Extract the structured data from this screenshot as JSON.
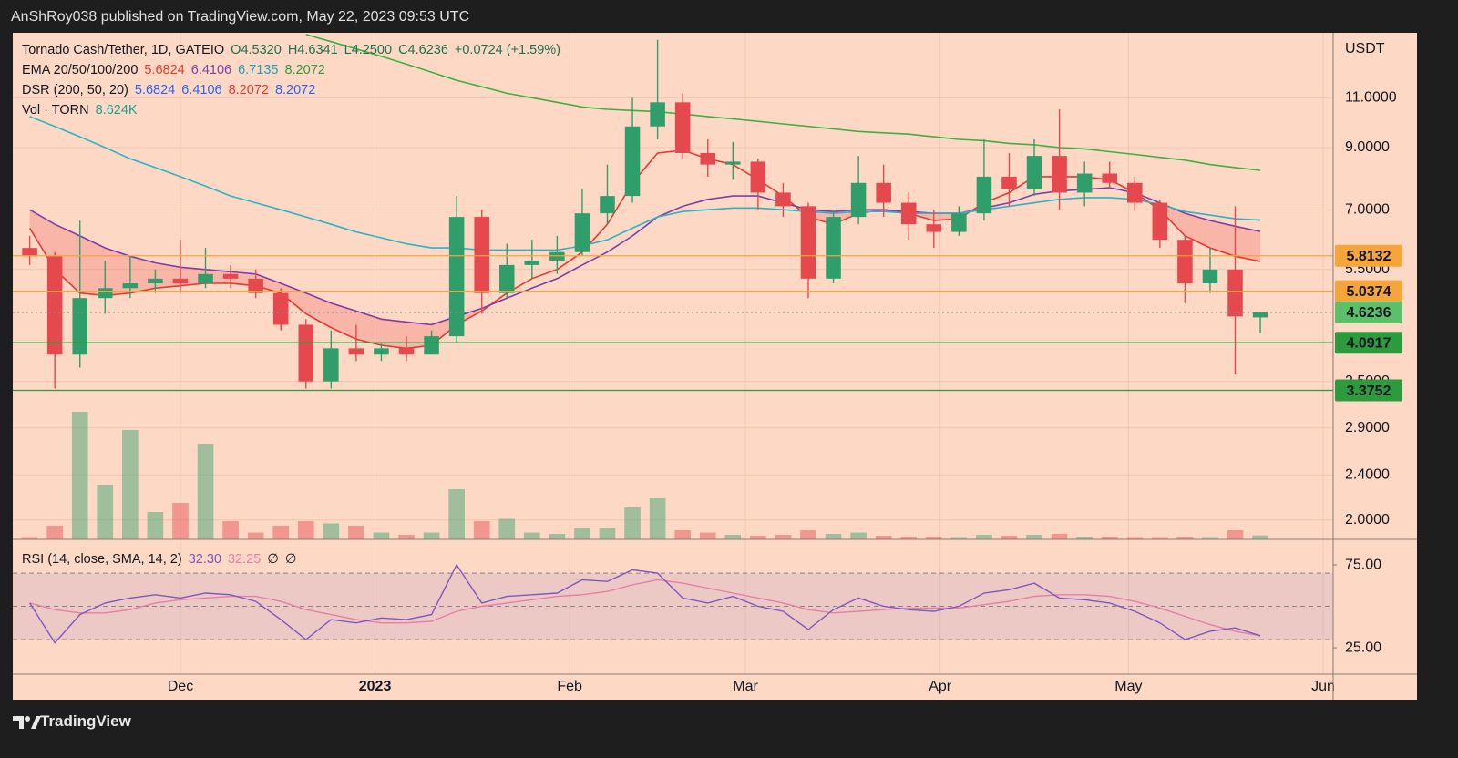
{
  "header": {
    "text": "AnShRoy038 published on TradingView.com, May 22, 2023 09:53 UTC"
  },
  "footer": {
    "brand": "TradingView"
  },
  "chart_data": {
    "type": "candlestick",
    "title": "Tornado Cash/Tether, 1D, GATEIO",
    "currency": "USDT",
    "log_scale": true,
    "grid": true,
    "up_color": "#2f9e6a",
    "down_color": "#e5484d",
    "x": [
      -24,
      -20,
      -16,
      -12,
      -8,
      -4,
      0,
      4,
      8,
      12,
      16,
      20,
      24,
      28,
      32,
      36,
      40,
      44,
      48,
      52,
      56,
      60,
      64,
      68,
      72,
      76,
      80,
      84,
      88,
      92,
      96,
      100,
      104,
      108,
      112,
      116,
      120,
      124,
      128,
      132,
      136,
      140,
      144,
      148,
      152,
      156,
      160,
      164,
      168,
      172
    ],
    "open": [
      6.0,
      5.8,
      3.9,
      4.9,
      5.1,
      5.2,
      5.3,
      5.2,
      5.4,
      5.3,
      5.0,
      4.4,
      3.5,
      4.0,
      3.9,
      4.0,
      3.9,
      4.2,
      6.8,
      5.0,
      5.6,
      5.7,
      5.9,
      6.9,
      7.4,
      9.8,
      10.8,
      8.8,
      8.4,
      8.5,
      7.5,
      7.1,
      5.3,
      6.8,
      7.8,
      7.2,
      6.6,
      6.4,
      6.9,
      8.0,
      7.6,
      8.7,
      7.5,
      8.1,
      7.8,
      7.2,
      6.2,
      5.2,
      5.5,
      4.532
    ],
    "high": [
      6.3,
      5.9,
      6.7,
      5.7,
      5.8,
      5.5,
      6.2,
      6.0,
      5.6,
      5.5,
      5.1,
      4.5,
      4.3,
      4.4,
      4.1,
      4.2,
      4.3,
      7.4,
      7.0,
      6.1,
      6.2,
      6.3,
      7.6,
      8.4,
      11.0,
      13.9,
      11.2,
      9.3,
      9.2,
      8.6,
      7.8,
      7.2,
      7.0,
      8.7,
      8.4,
      7.5,
      7.0,
      7.1,
      9.3,
      8.8,
      9.3,
      10.5,
      8.5,
      8.5,
      8.0,
      7.3,
      6.3,
      6.0,
      7.1,
      4.6341
    ],
    "low": [
      5.6,
      3.4,
      3.7,
      4.6,
      4.9,
      5.0,
      5.0,
      5.1,
      5.1,
      4.9,
      4.3,
      3.4,
      3.4,
      3.8,
      3.8,
      3.8,
      3.9,
      4.1,
      4.6,
      4.9,
      5.3,
      5.4,
      5.8,
      6.6,
      7.2,
      9.3,
      8.6,
      8.0,
      7.9,
      7.0,
      6.8,
      4.9,
      5.2,
      6.6,
      6.8,
      6.2,
      6.0,
      6.3,
      6.7,
      7.1,
      7.4,
      7.0,
      7.1,
      7.6,
      7.0,
      6.0,
      4.8,
      5.0,
      3.6,
      4.25
    ],
    "close": [
      5.8,
      3.9,
      4.9,
      5.1,
      5.2,
      5.3,
      5.2,
      5.4,
      5.3,
      5.0,
      4.4,
      3.5,
      4.0,
      3.9,
      4.0,
      3.9,
      4.2,
      6.8,
      5.0,
      5.6,
      5.7,
      5.9,
      6.9,
      7.4,
      9.8,
      10.8,
      8.8,
      8.4,
      8.5,
      7.5,
      7.1,
      5.3,
      6.8,
      7.8,
      7.2,
      6.6,
      6.4,
      6.9,
      8.0,
      7.6,
      8.7,
      7.5,
      8.1,
      7.8,
      7.2,
      6.2,
      5.2,
      5.5,
      4.55,
      4.6236
    ],
    "volume": [
      5,
      30,
      280,
      120,
      240,
      60,
      80,
      210,
      40,
      15,
      30,
      40,
      35,
      30,
      15,
      10,
      15,
      110,
      40,
      45,
      15,
      12,
      25,
      25,
      70,
      90,
      20,
      15,
      10,
      8,
      10,
      20,
      12,
      15,
      8,
      6,
      6,
      5,
      10,
      8,
      10,
      12,
      6,
      6,
      5,
      5,
      6,
      5,
      20,
      8.624
    ],
    "volume_lim": [
      0,
      300
    ],
    "lines": [
      {
        "color": "#e53935",
        "values": [
          6.5,
          5.5,
          5.0,
          4.95,
          5.0,
          5.1,
          5.15,
          5.2,
          5.2,
          5.15,
          5.0,
          4.6,
          4.35,
          4.15,
          4.05,
          4.0,
          4.05,
          4.4,
          4.65,
          5.0,
          5.3,
          5.5,
          5.9,
          6.6,
          7.8,
          8.8,
          8.9,
          8.6,
          8.4,
          7.9,
          7.4,
          6.8,
          6.6,
          6.9,
          7.0,
          6.9,
          6.7,
          6.75,
          7.2,
          7.5,
          8.0,
          8.0,
          8.0,
          7.9,
          7.5,
          7.0,
          6.3,
          6.0,
          5.8,
          5.6824
        ]
      },
      {
        "color": "#7b3fa8",
        "values": [
          7.0,
          6.6,
          6.3,
          6.0,
          5.8,
          5.65,
          5.55,
          5.5,
          5.45,
          5.4,
          5.2,
          5.0,
          4.8,
          4.65,
          4.5,
          4.45,
          4.4,
          4.55,
          4.7,
          4.9,
          5.1,
          5.3,
          5.6,
          5.9,
          6.3,
          6.8,
          7.1,
          7.3,
          7.4,
          7.4,
          7.2,
          7.0,
          6.95,
          7.0,
          7.0,
          6.95,
          6.9,
          6.9,
          7.05,
          7.2,
          7.45,
          7.55,
          7.6,
          7.65,
          7.5,
          7.2,
          6.9,
          6.7,
          6.55,
          6.4106
        ]
      },
      {
        "color": "#2bb3c8",
        "values": [
          10.2,
          9.8,
          9.4,
          9.0,
          8.6,
          8.3,
          8.0,
          7.7,
          7.4,
          7.2,
          7.0,
          6.8,
          6.6,
          6.4,
          6.25,
          6.1,
          6.0,
          6.0,
          5.95,
          5.95,
          5.95,
          5.95,
          6.05,
          6.2,
          6.5,
          6.8,
          6.95,
          7.0,
          7.05,
          7.05,
          7.0,
          6.95,
          6.9,
          6.95,
          6.95,
          6.9,
          6.9,
          6.9,
          7.0,
          7.1,
          7.2,
          7.3,
          7.35,
          7.35,
          7.3,
          7.15,
          6.95,
          6.85,
          6.75,
          6.7135
        ]
      },
      {
        "color": "#3cb043",
        "values": [
          null,
          null,
          null,
          null,
          null,
          null,
          null,
          null,
          null,
          null,
          null,
          14.2,
          13.8,
          13.4,
          13.0,
          12.6,
          12.2,
          11.8,
          11.5,
          11.2,
          11.0,
          10.8,
          10.6,
          10.5,
          10.45,
          10.4,
          10.3,
          10.2,
          10.1,
          10.0,
          9.9,
          9.8,
          9.7,
          9.6,
          9.55,
          9.5,
          9.4,
          9.3,
          9.25,
          9.15,
          9.1,
          9.0,
          8.95,
          8.85,
          8.75,
          8.65,
          8.55,
          8.4,
          8.3,
          8.2072
        ]
      }
    ],
    "cloud_color": "rgba(240,90,90,0.28)",
    "xlim": [
      -26.7,
      183.6
    ],
    "xticks": [
      {
        "value": 0,
        "label": "Dec"
      },
      {
        "value": 31,
        "label": "2023"
      },
      {
        "value": 62,
        "label": "Feb"
      },
      {
        "value": 90,
        "label": "Mar"
      },
      {
        "value": 121,
        "label": "Apr"
      },
      {
        "value": 151,
        "label": "May"
      },
      {
        "value": 182,
        "label": "Jun"
      }
    ],
    "ylim": [
      1.85,
      14.3
    ],
    "yticks": [
      {
        "value": 2,
        "label": "2.0000"
      },
      {
        "value": 2.4,
        "label": "2.4000"
      },
      {
        "value": 2.9,
        "label": "2.9000"
      },
      {
        "value": 3.5,
        "label": "3.5000"
      },
      {
        "value": 5.5,
        "label": "5.5000"
      },
      {
        "value": 7,
        "label": "7.0000"
      },
      {
        "value": 9,
        "label": "9.0000"
      },
      {
        "value": 11,
        "label": "11.0000"
      }
    ],
    "price_levels": [
      {
        "value": 5.8132,
        "color": "#f5a53a",
        "dashed": false
      },
      {
        "value": 5.0374,
        "color": "#f5a53a",
        "dashed": false
      },
      {
        "value": 4.6236,
        "color": "#5cbf6a",
        "dashed": true
      },
      {
        "value": 4.0917,
        "color": "#2e9a3e",
        "dashed": false
      },
      {
        "value": 3.3752,
        "color": "#2e9a3e",
        "dashed": false
      }
    ],
    "legend": [
      {
        "label": "Tornado Cash/Tether, 1D, GATEIO",
        "readouts": [
          {
            "text": "O4.5320",
            "color": "#1f6f4f"
          },
          {
            "text": "H4.6341",
            "color": "#1f6f4f"
          },
          {
            "text": "L4.2500",
            "color": "#1f6f4f"
          },
          {
            "text": "C4.6236",
            "color": "#1f6f4f"
          },
          {
            "text": "+0.0724 (+1.59%)",
            "color": "#1f6f4f"
          }
        ]
      },
      {
        "label": "EMA 20/50/100/200",
        "readouts": [
          {
            "text": "5.6824",
            "color": "#e53935"
          },
          {
            "text": "6.4106",
            "color": "#7b3fa8"
          },
          {
            "text": "6.7135",
            "color": "#1f9fb5"
          },
          {
            "text": "8.2072",
            "color": "#2e9a3e"
          }
        ]
      },
      {
        "label": "DSR (200, 50, 20)",
        "readouts": [
          {
            "text": "5.6824",
            "color": "#2962ff"
          },
          {
            "text": "6.4106",
            "color": "#2962ff"
          },
          {
            "text": "8.2072",
            "color": "#e53935"
          },
          {
            "text": "8.2072",
            "color": "#2962ff"
          }
        ]
      },
      {
        "label": "Vol · TORN",
        "readouts": [
          {
            "text": "8.624K",
            "color": "#1f9f8f"
          }
        ]
      }
    ],
    "rsi_legend": {
      "label": "RSI (14, close, SMA, 14, 2)",
      "readouts": [
        {
          "text": "32.30",
          "color": "#7e57c2"
        },
        {
          "text": "32.25",
          "color": "#e57fa8"
        },
        {
          "text": "∅",
          "color": "#131722"
        },
        {
          "text": "∅",
          "color": "#131722"
        }
      ]
    },
    "rsi": {
      "color": "#7e57c2",
      "values": [
        52,
        28,
        45,
        52,
        55,
        57,
        55,
        58,
        57,
        53,
        42,
        30,
        42,
        40,
        43,
        42,
        45,
        75,
        52,
        56,
        57,
        58,
        66,
        65,
        72,
        70,
        55,
        52,
        56,
        50,
        47,
        36,
        48,
        55,
        50,
        48,
        47,
        50,
        58,
        60,
        64,
        55,
        54,
        52,
        47,
        40,
        30,
        35,
        37,
        32.3
      ]
    },
    "rsi_sma": {
      "color": "#e57fa8",
      "values": [
        52,
        48,
        46,
        46,
        48,
        52,
        54,
        55,
        56,
        56,
        53,
        48,
        45,
        42,
        40,
        40,
        41,
        47,
        50,
        52,
        54,
        56,
        57,
        59,
        63,
        66,
        64,
        61,
        58,
        55,
        52,
        48,
        46,
        47,
        48,
        49,
        49,
        49,
        51,
        53,
        56,
        57,
        57,
        56,
        53,
        49,
        44,
        39,
        35,
        32.25
      ]
    },
    "rsi_ylim": [
      9.1,
      90.4
    ],
    "rsi_yticks": [
      {
        "value": 25,
        "label": "25.00"
      },
      {
        "value": 75,
        "label": "75.00"
      }
    ],
    "rsi_bands": [
      70,
      50,
      30
    ]
  }
}
